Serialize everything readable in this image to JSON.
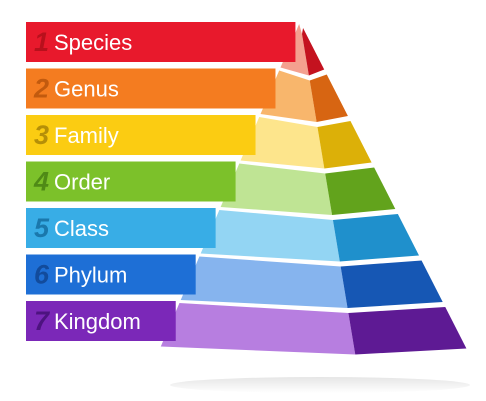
{
  "levels": [
    {
      "number": "1",
      "label": "Species",
      "color": "#e8192c",
      "light": "#f4a08f",
      "dark": "#c4121f",
      "num_color": "#b8101c"
    },
    {
      "number": "2",
      "label": "Genus",
      "color": "#f47c20",
      "light": "#f8b66c",
      "dark": "#d76512",
      "num_color": "#c25a0e"
    },
    {
      "number": "3",
      "label": "Family",
      "color": "#fbcc12",
      "light": "#fde58c",
      "dark": "#dcb008",
      "num_color": "#b58f08"
    },
    {
      "number": "4",
      "label": "Order",
      "color": "#7cc12a",
      "light": "#bfe494",
      "dark": "#62a31c",
      "num_color": "#4f8a16"
    },
    {
      "number": "5",
      "label": "Class",
      "color": "#38ade6",
      "light": "#93d5f3",
      "dark": "#1f90cc",
      "num_color": "#1a78ac"
    },
    {
      "number": "6",
      "label": "Phylum",
      "color": "#1e6fd6",
      "light": "#86b4ee",
      "dark": "#1657b4",
      "num_color": "#124b9c"
    },
    {
      "number": "7",
      "label": "Kingdom",
      "color": "#7b28b8",
      "light": "#b77ee0",
      "dark": "#5e1a94",
      "num_color": "#4d1380"
    }
  ]
}
